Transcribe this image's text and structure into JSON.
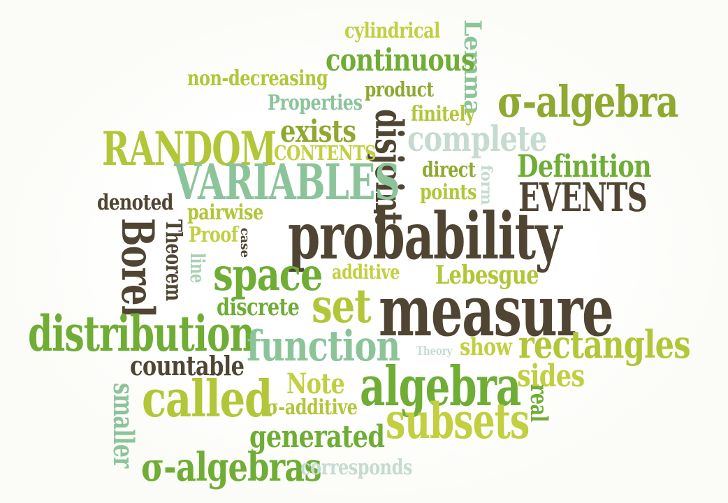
{
  "colors": {
    "dark": "#4f4532",
    "darker": "#3c3526",
    "olive": "#8fa830",
    "lime": "#b2c638",
    "green": "#6fad35",
    "leaf": "#85b83c",
    "mint": "#8cc49a",
    "pale_mint": "#a9d0b2",
    "grey_mint": "#c6dbd0",
    "yellow_green": "#c2cf40"
  },
  "words": {
    "cylindrical": "cylindrical",
    "lemma": "Lemma",
    "continuous": "continuous",
    "non_decreasing": "non-decreasing",
    "product": "product",
    "sigma_algebra": "σ-algebra",
    "properties": "Properties",
    "finitely": "finitely",
    "random": "RANDOM",
    "exists": "exists",
    "disjoint": "disjoint",
    "complete": "complete",
    "contents": "CONTENTS",
    "variables": "VARIABLES",
    "direct": "direct",
    "form": "form",
    "definition": "Definition",
    "points": "points",
    "events": "EVENTS",
    "denoted": "denoted",
    "pairwise": "pairwise",
    "borel": "Borel",
    "theorem": "Theorem",
    "proof": "Proof",
    "case": "case",
    "probability": "probability",
    "line": "line",
    "space": "space",
    "additive": "additive",
    "lebesgue": "Lebesgue",
    "set": "set",
    "measure": "measure",
    "discrete": "discrete",
    "distribution": "distribution",
    "function": "function",
    "theory": "Theory",
    "show": "show",
    "rectangles": "rectangles",
    "countable": "countable",
    "sides": "sides",
    "smaller": "smaller",
    "called": "called",
    "note": "Note",
    "algebra": "algebra",
    "real": "real",
    "sigma_additive": "σ-additive",
    "subsets": "subsets",
    "generated": "generated",
    "sigma_algebras": "σ-algebras",
    "corresponds": "corresponds"
  }
}
